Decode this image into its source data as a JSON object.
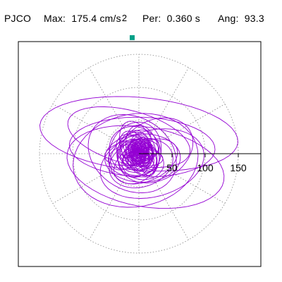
{
  "header": {
    "station": "PJCO",
    "max_label": "Max:",
    "max_value": "175.4",
    "max_unit": "cm/s",
    "max_unit_exp": "2",
    "per_label": "Per:",
    "per_value": "0.360 s",
    "ang_label": "Ang:",
    "ang_value": "93.3"
  },
  "chart_data": {
    "type": "polar",
    "title": "PJCO",
    "max_value": 175.4,
    "max_unit": "cm/s²",
    "period_s": 0.36,
    "angle_deg": 93.3,
    "radial_ticks": [
      50,
      100,
      150
    ],
    "radial_rings": [
      50,
      100,
      150
    ],
    "angular_spoke_step_deg": 30,
    "grid": true,
    "trace_color": "#9400d3",
    "marker_color": "#00a087",
    "marker": {
      "radius": 175.4,
      "angle_deg": 93.3
    }
  }
}
